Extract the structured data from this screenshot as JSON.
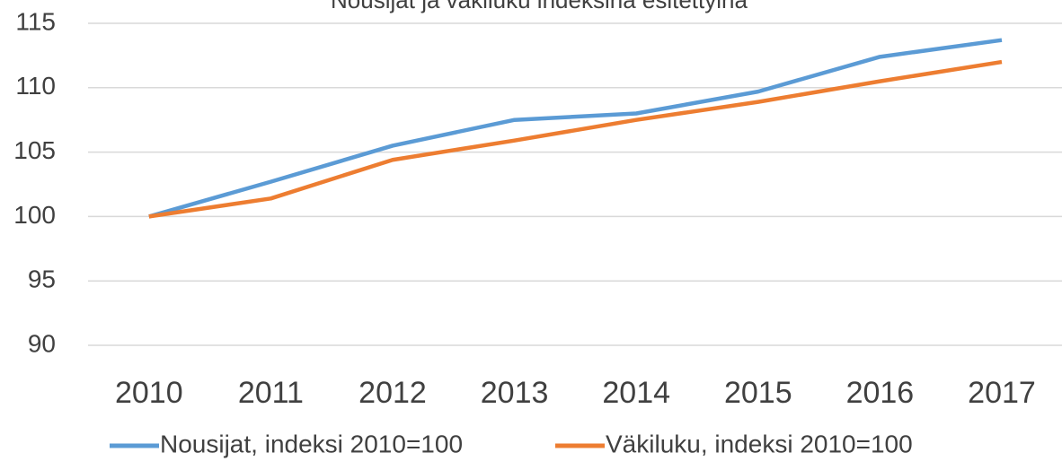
{
  "chart_data": {
    "type": "line",
    "title": "Nousijat ja väkiluku indeksinä esitettyinä",
    "categories": [
      "2010",
      "2011",
      "2012",
      "2013",
      "2014",
      "2015",
      "2016",
      "2017"
    ],
    "series": [
      {
        "name": "Nousijat, indeksi 2010=100",
        "color": "#5b9bd5",
        "values": [
          100,
          102.7,
          105.5,
          107.5,
          108.0,
          109.7,
          112.4,
          113.7
        ]
      },
      {
        "name": "Väkiluku, indeksi 2010=100",
        "color": "#ed7d31",
        "values": [
          100,
          101.4,
          104.4,
          105.9,
          107.5,
          108.9,
          110.5,
          112.0
        ]
      }
    ],
    "ylim": [
      90,
      115
    ],
    "yticks": [
      90,
      95,
      100,
      105,
      110,
      115
    ],
    "grid": true,
    "legend": "bottom"
  }
}
